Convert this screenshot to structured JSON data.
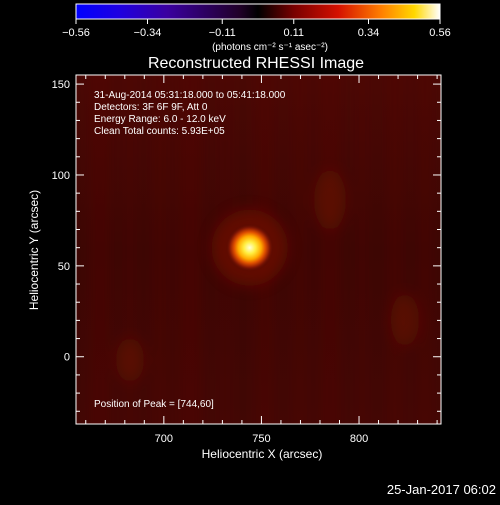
{
  "colorbar": {
    "tick_labels": [
      "−0.56",
      "−0.34",
      "−0.11",
      "0.11",
      "0.34",
      "0.56"
    ],
    "tick_values": [
      -0.56,
      -0.34,
      -0.11,
      0.11,
      0.34,
      0.56
    ],
    "range": [
      -0.56,
      0.56
    ],
    "units": "(photons cm⁻² s⁻¹ asec⁻²)"
  },
  "plot": {
    "title": "Reconstructed RHESSI Image",
    "info_lines": [
      "31‐Aug‐2014 05:31:18.000 to 05:41:18.000",
      "Detectors: 3F 6F 9F, Att 0",
      "Energy Range: 6.0 ‐ 12.0 keV",
      "Clean    Total counts: 5.93E+05"
    ],
    "peak_text": "Position of Peak = [744,60]",
    "peak": {
      "x": 744,
      "y": 60
    },
    "x_axis": {
      "label": "Heliocentric X (arcsec)",
      "ticks": [
        700,
        750,
        800
      ],
      "range": [
        655,
        842
      ]
    },
    "y_axis": {
      "label": "Heliocentric Y (arcsec)",
      "ticks": [
        0,
        50,
        100,
        150
      ],
      "range": [
        -37,
        155
      ]
    }
  },
  "timestamp": "25‐Jan‐2017 06:02",
  "colors": {
    "background": "#000000",
    "text": "#ffffff",
    "image_base": "#3d0502",
    "image_streak": "#5a0c03",
    "source_core": "#ffffd0"
  }
}
